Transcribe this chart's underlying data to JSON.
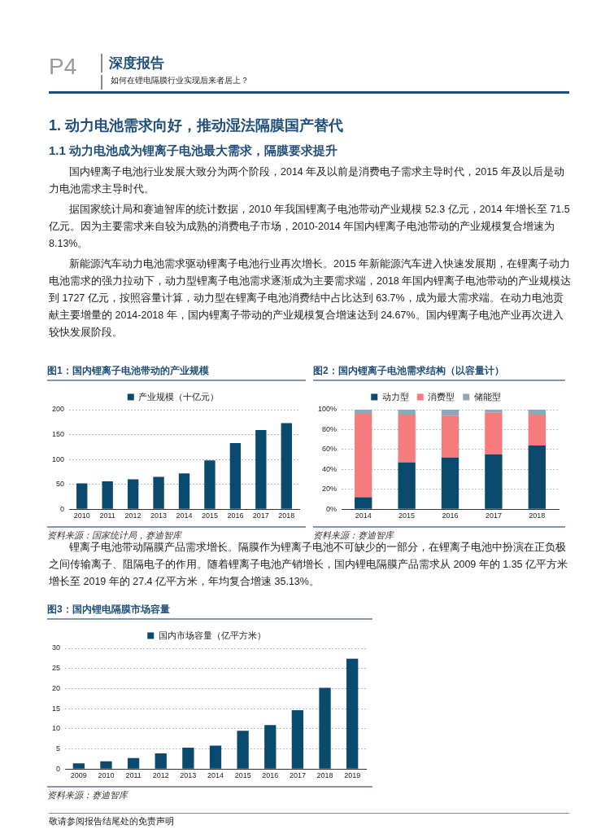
{
  "chart_data": [
    {
      "type": "other",
      "title": "深度报告",
      "subtitle": "如何在锂电隔膜行业实现后来者居上？",
      "annotations": [
        "P4"
      ]
    },
    {
      "type": "other",
      "title": "1. 动力电池需求向好，推动湿法隔膜国产替代",
      "subtitle": "1.1 动力电池成为锂离子电池最大需求，隔膜要求提升",
      "annotations": [
        "国内锂离子电池行业发展大致分为两个阶段，2014 年及以前是消费电子需求主导时代，2015 年及以后是动力电池需求主导时代。",
        "据国家统计局和赛迪智库的统计数据，2010 年我国锂离子电池带动产业规模 52.3 亿元，2014 年增长至 71.5 亿元。因为主要需求来自较为成熟的消费电子市场，2010-2014 年国内锂离子电池带动的产业规模复合增速为 8.13%。",
        "新能源汽车动力电池需求驱动锂离子电池行业再次增长。2015 年新能源汽车进入快速发展期，在锂离子动力电池需求的强力拉动下，动力型锂离子电池需求逐渐成为主要需求端，2018 年国内锂离子电池带动的产业规模达到 1727 亿元，按照容量计算，动力型在锂离子电池消费结中占比达到 63.7%，成为最大需求端。在动力电池贡献主要增量的 2014-2018 年，国内锂离子带动的产业规模复合增速达到 24.67%。国内锂离子电池产业再次进入较快发展阶段。"
      ]
    },
    {
      "type": "bar",
      "title": "图1：国内锂离子电池带动的产业规模",
      "annotations": [
        "资料来源：国家统计局，赛迪智库"
      ],
      "categories": [
        "2010",
        "2011",
        "2012",
        "2013",
        "2014",
        "2015",
        "2016",
        "2017",
        "2018"
      ],
      "series": [
        {
          "name": "产业规模（十亿元）",
          "color": "#0a4a6e",
          "values": [
            52,
            56,
            60,
            65,
            72,
            98,
            133,
            159,
            173
          ]
        }
      ],
      "ylim": [
        0,
        200
      ],
      "yticks": [
        0,
        50,
        100,
        150,
        200
      ],
      "grid": "y",
      "legend": "top"
    },
    {
      "type": "bar",
      "title": "图2：国内锂离子电池需求结构（以容量计）",
      "annotations": [
        "资料来源：赛迪智库"
      ],
      "categories": [
        "2014",
        "2015",
        "2016",
        "2017",
        "2018"
      ],
      "stacked": true,
      "series": [
        {
          "name": "动力型",
          "color": "#0a4a6e",
          "values": [
            12,
            47,
            52,
            55,
            64
          ]
        },
        {
          "name": "消费型",
          "color": "#f47c7c",
          "values": [
            84,
            48,
            42,
            42,
            31
          ]
        },
        {
          "name": "储能型",
          "color": "#8fa6bd",
          "values": [
            4,
            5,
            6,
            3,
            5
          ]
        }
      ],
      "ylim": [
        0,
        100
      ],
      "yticks": [
        {
          "value": 0,
          "label": "0%"
        },
        {
          "value": 20,
          "label": "20%"
        },
        {
          "value": 40,
          "label": "40%"
        },
        {
          "value": 60,
          "label": "60%"
        },
        {
          "value": 80,
          "label": "80%"
        },
        {
          "value": 100,
          "label": "100%"
        }
      ],
      "grid": "y",
      "legend": "top"
    },
    {
      "type": "other",
      "annotations": [
        "锂离子电池带动隔膜产品需求增长。隔膜作为锂离子电池不可缺少的一部分，在锂离子电池中扮演在正负极之间传输离子、阻隔电子的作用。随着锂离子电池产销增长，国内锂电隔膜产品需求从 2009 年的 1.35 亿平方米增长至 2019 年的 27.4 亿平方米，年均复合增速 35.13%。"
      ]
    },
    {
      "type": "bar",
      "title": "图3：国内锂电隔膜市场容量",
      "annotations": [
        "资料来源：赛迪智库"
      ],
      "categories": [
        "2009",
        "2010",
        "2011",
        "2012",
        "2013",
        "2014",
        "2015",
        "2016",
        "2017",
        "2018",
        "2019"
      ],
      "series": [
        {
          "name": "国内市场容量（亿平方米）",
          "color": "#0a4a6e",
          "values": [
            1.4,
            1.9,
            2.7,
            3.9,
            5.3,
            5.8,
            9.5,
            10.9,
            14.6,
            20.2,
            27.4
          ]
        }
      ],
      "ylim": [
        0,
        30
      ],
      "yticks": [
        0,
        5,
        10,
        15,
        20,
        25,
        30
      ],
      "grid": "y",
      "legend": "top"
    },
    {
      "type": "other",
      "annotations": [
        "敬请参阅报告结尾处的免责声明"
      ]
    }
  ]
}
